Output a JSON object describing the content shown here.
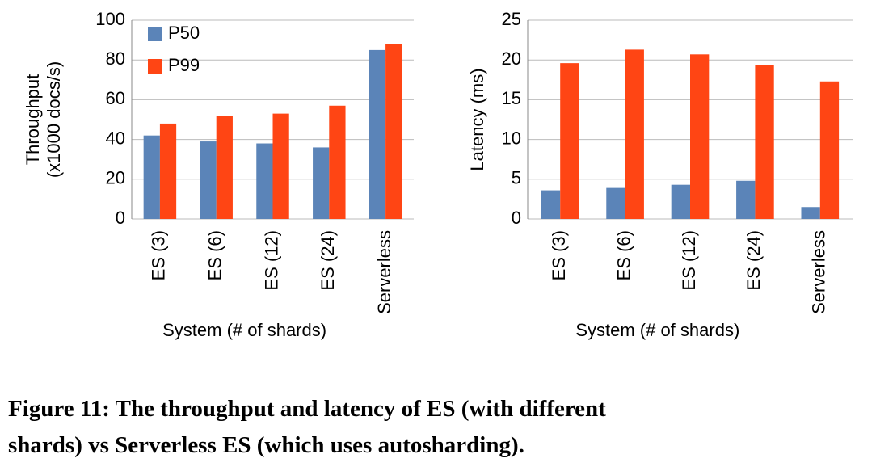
{
  "chart_data": [
    {
      "type": "bar",
      "ylabel": [
        "Throughput",
        "(x1000 docs/s)"
      ],
      "xlabel": "System (# of shards)",
      "categories": [
        "ES (3)",
        "ES (6)",
        "ES (12)",
        "ES (24)",
        "Serverless"
      ],
      "series": [
        {
          "name": "P50",
          "color": "#5b84b8",
          "values": [
            42,
            39,
            38,
            36,
            85
          ]
        },
        {
          "name": "P99",
          "color": "#ff4514",
          "values": [
            48,
            52,
            53,
            57,
            88
          ]
        }
      ],
      "ylim": [
        0,
        100
      ],
      "yticks": [
        0,
        20,
        40,
        60,
        80,
        100
      ],
      "grid": true,
      "legend": "upper left"
    },
    {
      "type": "bar",
      "ylabel": [
        "Latency (ms)"
      ],
      "xlabel": "System (# of shards)",
      "categories": [
        "ES (3)",
        "ES (6)",
        "ES (12)",
        "ES (24)",
        "Serverless"
      ],
      "series": [
        {
          "color": "#5b84b8",
          "values": [
            3.6,
            3.9,
            4.3,
            4.8,
            1.5
          ]
        },
        {
          "color": "#ff4514",
          "values": [
            19.6,
            21.3,
            20.7,
            19.4,
            17.3
          ]
        }
      ],
      "ylim": [
        0,
        25
      ],
      "yticks": [
        0,
        5,
        10,
        15,
        20,
        25
      ],
      "grid": true
    }
  ],
  "caption": [
    "Figure 11: The throughput and latency of ES (with different",
    "shards) vs Serverless ES (which uses autosharding)."
  ]
}
